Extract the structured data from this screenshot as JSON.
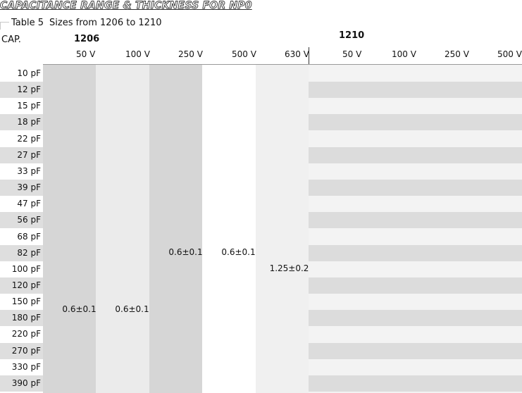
{
  "title": "CAPACITANCE RANGE & THICKNESS FOR NP0",
  "table_label": "Table 5",
  "table_subtitle": "Sizes from 1206 to 1210",
  "cap_header": "CAP.",
  "groups": [
    {
      "name": "1206",
      "voltages": [
        "50 V",
        "100 V",
        "250 V",
        "500 V",
        "630 V"
      ]
    },
    {
      "name": "1210",
      "voltages": [
        "50 V",
        "100 V",
        "250 V",
        "500 V"
      ]
    }
  ],
  "capacitances": [
    "10 pF",
    "12 pF",
    "15 pF",
    "18 pF",
    "22 pF",
    "27 pF",
    "33 pF",
    "39 pF",
    "47 pF",
    "56 pF",
    "68 pF",
    "82 pF",
    "100 pF",
    "120 pF",
    "150 pF",
    "180 pF",
    "220 pF",
    "270 pF",
    "330 pF",
    "390 pF"
  ],
  "thickness_values": {
    "c1206_50v": "0.6±0.1",
    "c1206_100v": "0.6±0.1",
    "c1206_250v": "0.6±0.1",
    "c1206_500v": "0.6±0.1",
    "c1206_630v": "1.25±0.2"
  },
  "colors": {
    "dark_band": "#d6d6d6",
    "light_band": "#ebebeb",
    "stripe": "#dcdcdc",
    "cap_stripe": "#dedede"
  }
}
